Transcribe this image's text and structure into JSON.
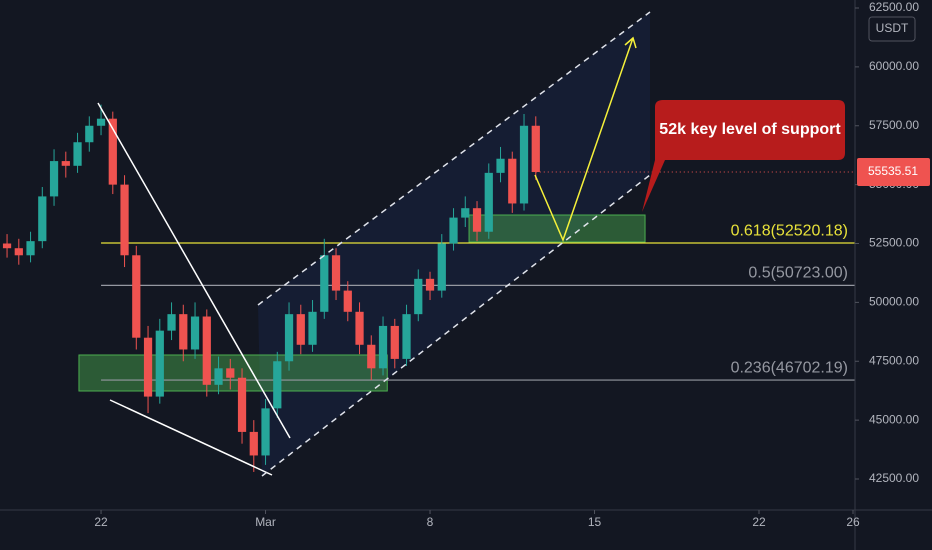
{
  "chart_data": {
    "type": "candlestick",
    "currency": "USDT",
    "up_color": "#26a69a",
    "down_color": "#ef5350",
    "x": [
      -4,
      -3.5,
      -3,
      -2.5,
      -2,
      -1.5,
      -1,
      -0.5,
      0,
      0.5,
      1,
      1.5,
      2,
      2.5,
      3,
      3.5,
      4,
      4.5,
      5,
      5.5,
      6,
      6.5,
      7,
      7.5,
      8,
      8.5,
      9,
      9.5,
      10,
      10.5,
      11,
      11.5,
      12,
      12.5,
      13,
      13.5,
      14,
      14.5,
      15,
      15.5,
      16,
      16.5,
      17,
      17.5,
      18,
      18.5
    ],
    "open": [
      52500,
      52300,
      52000,
      52600,
      54500,
      56000,
      55800,
      56800,
      57500,
      57800,
      55000,
      52000,
      48500,
      46000,
      48800,
      49500,
      48000,
      49400,
      46500,
      47200,
      46800,
      44500,
      43500,
      45500,
      47500,
      49500,
      48200,
      49600,
      52000,
      50500,
      49600,
      48200,
      47200,
      49000,
      47600,
      49500,
      51000,
      50500,
      52500,
      53600,
      54000,
      53000,
      55500,
      56100,
      54200,
      57500
    ],
    "high": [
      52900,
      52700,
      53000,
      54900,
      56500,
      56400,
      57200,
      57900,
      58400,
      58100,
      55400,
      52400,
      49000,
      49300,
      50000,
      49900,
      50000,
      49700,
      47700,
      47600,
      47200,
      45000,
      45900,
      47900,
      50000,
      49900,
      50100,
      52700,
      52300,
      50900,
      50000,
      48600,
      49400,
      49300,
      49900,
      51400,
      51300,
      52900,
      54000,
      54500,
      54300,
      55900,
      56600,
      56400,
      58000,
      57900
    ],
    "low": [
      51900,
      51600,
      51700,
      52300,
      54100,
      55300,
      55500,
      56400,
      57100,
      54600,
      51500,
      48000,
      45300,
      45700,
      48400,
      47500,
      47600,
      46000,
      46100,
      46300,
      44000,
      42800,
      43100,
      45100,
      47100,
      47800,
      47900,
      49300,
      50100,
      49200,
      47800,
      46700,
      46900,
      47200,
      47300,
      49200,
      50100,
      50200,
      52200,
      53200,
      52600,
      52700,
      55100,
      53800,
      53900,
      55200
    ],
    "close": [
      52300,
      52000,
      52600,
      54500,
      56000,
      55800,
      56800,
      57500,
      57800,
      55000,
      52000,
      48500,
      46000,
      48800,
      49500,
      48000,
      49400,
      46500,
      47200,
      46800,
      44500,
      43500,
      45500,
      47500,
      49500,
      48200,
      49600,
      52000,
      50500,
      49600,
      48200,
      47200,
      49000,
      47600,
      49500,
      51000,
      50500,
      52500,
      53600,
      54000,
      53000,
      55500,
      56100,
      54200,
      57500,
      55535.51
    ],
    "last_price": {
      "value": 55535.51,
      "label": "55535.51",
      "color": "#ef5350"
    },
    "ylim": [
      41184,
      62840
    ],
    "yticks": [
      {
        "value": 42500,
        "label": "42500.00"
      },
      {
        "value": 45000,
        "label": "45000.00"
      },
      {
        "value": 47500,
        "label": "47500.00"
      },
      {
        "value": 50000,
        "label": "50000.00"
      },
      {
        "value": 52500,
        "label": "52500.00"
      },
      {
        "value": 55000,
        "label": "55000.00"
      },
      {
        "value": 57500,
        "label": "57500.00"
      },
      {
        "value": 60000,
        "label": "60000.00"
      },
      {
        "value": 62500,
        "label": "62500.00"
      }
    ],
    "xlim": [
      -4.3,
      32.085
    ],
    "xticks": [
      {
        "value": 0,
        "label": "22"
      },
      {
        "value": 7,
        "label": "Mar"
      },
      {
        "value": 14,
        "label": "8"
      },
      {
        "value": 21,
        "label": "15"
      },
      {
        "value": 28,
        "label": "22"
      },
      {
        "value": 32,
        "label": "26"
      }
    ],
    "fib_levels": [
      {
        "value": 52520.18,
        "label": "0.618(52520.18)",
        "color": "#e8e23a"
      },
      {
        "value": 50723.0,
        "label": "0.5(50723.00)",
        "color": "#9598a1"
      },
      {
        "value": 46702.19,
        "label": "0.236(46702.19)",
        "color": "#9598a1"
      }
    ],
    "zones": [
      {
        "x": [
          -0.94,
          12.18
        ],
        "y": [
          46237,
          47766
        ]
      },
      {
        "x": [
          15.66,
          23.15
        ],
        "y": [
          52564,
          53710
        ]
      }
    ],
    "annotation": "52k key level of support"
  }
}
